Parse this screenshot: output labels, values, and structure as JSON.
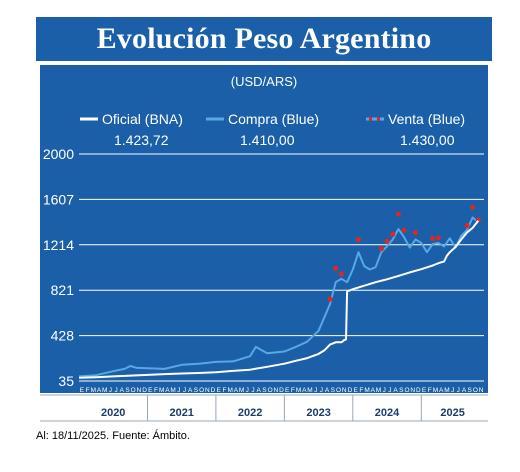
{
  "chart_data": {
    "type": "line",
    "title": "Evolución Peso Argentino",
    "subtitle": "(USD/ARS)",
    "legend_position": "top",
    "grid": true,
    "ylim": [
      35,
      2000
    ],
    "yticks": [
      35,
      428,
      821,
      1214,
      1607,
      2000
    ],
    "month_letters": [
      "E",
      "F",
      "M",
      "A",
      "M",
      "J",
      "J",
      "A",
      "S",
      "O",
      "N",
      "D"
    ],
    "last_month_count": 11,
    "years": [
      "2020",
      "2021",
      "2022",
      "2023",
      "2024",
      "2025"
    ],
    "x_unit": "months since Jan 2020",
    "series": [
      {
        "name": "Oficial (BNA)",
        "last_value": "1.423,72",
        "color": "#ffffff",
        "points": [
          [
            0,
            63
          ],
          [
            3,
            68
          ],
          [
            6,
            75
          ],
          [
            9,
            82
          ],
          [
            12,
            88
          ],
          [
            15,
            95
          ],
          [
            18,
            100
          ],
          [
            21,
            104
          ],
          [
            24,
            110
          ],
          [
            27,
            122
          ],
          [
            30,
            133
          ],
          [
            33,
            158
          ],
          [
            36,
            185
          ],
          [
            38,
            210
          ],
          [
            40,
            233
          ],
          [
            42,
            270
          ],
          [
            43,
            300
          ],
          [
            44,
            350
          ],
          [
            45,
            370
          ],
          [
            46,
            370
          ],
          [
            46.3,
            380
          ],
          [
            46.5,
            390
          ],
          [
            46.8,
            395
          ],
          [
            47,
            810
          ],
          [
            48,
            830
          ],
          [
            50,
            860
          ],
          [
            52,
            890
          ],
          [
            54,
            915
          ],
          [
            56,
            945
          ],
          [
            58,
            975
          ],
          [
            60,
            1003
          ],
          [
            62,
            1035
          ],
          [
            63,
            1055
          ],
          [
            64,
            1070
          ],
          [
            64.5,
            1120
          ],
          [
            65,
            1150
          ],
          [
            66,
            1195
          ],
          [
            67,
            1260
          ],
          [
            68,
            1320
          ],
          [
            69,
            1360
          ],
          [
            70,
            1423
          ]
        ]
      },
      {
        "name": "Compra (Blue)",
        "last_value": "1.410,00",
        "color": "#58a8e6",
        "points": [
          [
            0,
            75
          ],
          [
            3,
            85
          ],
          [
            6,
            120
          ],
          [
            8,
            140
          ],
          [
            9,
            165
          ],
          [
            10,
            150
          ],
          [
            12,
            145
          ],
          [
            15,
            140
          ],
          [
            18,
            175
          ],
          [
            21,
            185
          ],
          [
            24,
            200
          ],
          [
            27,
            205
          ],
          [
            30,
            250
          ],
          [
            31,
            330
          ],
          [
            33,
            275
          ],
          [
            36,
            290
          ],
          [
            38,
            330
          ],
          [
            40,
            375
          ],
          [
            42,
            470
          ],
          [
            44,
            700
          ],
          [
            45,
            890
          ],
          [
            46,
            920
          ],
          [
            47,
            890
          ],
          [
            48,
            1000
          ],
          [
            49,
            1150
          ],
          [
            50,
            1030
          ],
          [
            51,
            1000
          ],
          [
            52,
            1020
          ],
          [
            53,
            1150
          ],
          [
            54,
            1200
          ],
          [
            55,
            1260
          ],
          [
            56,
            1350
          ],
          [
            57,
            1280
          ],
          [
            58,
            1190
          ],
          [
            59,
            1260
          ],
          [
            60,
            1230
          ],
          [
            61,
            1150
          ],
          [
            62,
            1220
          ],
          [
            63,
            1230
          ],
          [
            64,
            1200
          ],
          [
            65,
            1270
          ],
          [
            66,
            1190
          ],
          [
            67,
            1290
          ],
          [
            68,
            1340
          ],
          [
            69,
            1450
          ],
          [
            70,
            1410
          ]
        ]
      },
      {
        "name": "Venta (Blue)",
        "last_value": "1.430,00",
        "color": "#d42a2a",
        "points": [
          [
            44,
            745
          ],
          [
            45,
            1010
          ],
          [
            46,
            960
          ],
          [
            49,
            1260
          ],
          [
            53,
            1180
          ],
          [
            54,
            1245
          ],
          [
            55,
            1305
          ],
          [
            56,
            1480
          ],
          [
            57,
            1340
          ],
          [
            59,
            1320
          ],
          [
            62,
            1270
          ],
          [
            63,
            1275
          ],
          [
            68,
            1380
          ],
          [
            69,
            1540
          ],
          [
            70,
            1430
          ]
        ]
      }
    ]
  },
  "footnote": "Al: 18/11/2025. Fuente: Ámbito."
}
